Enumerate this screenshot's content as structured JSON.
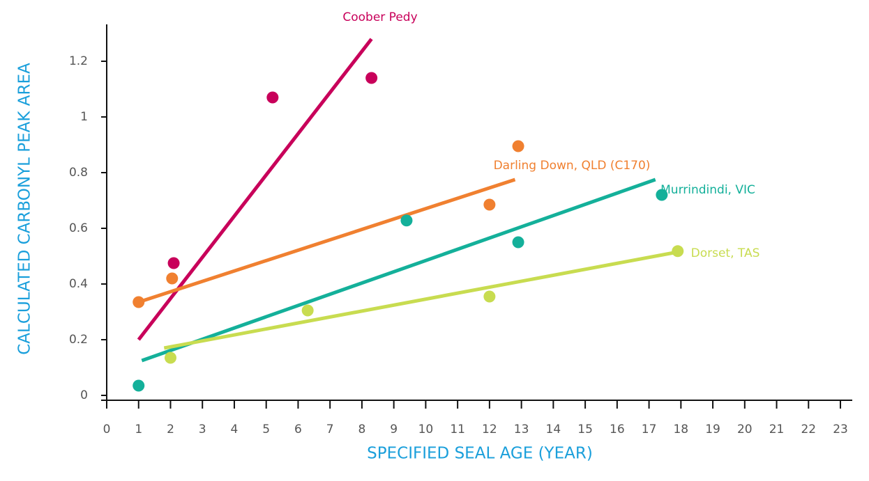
{
  "chart_data": {
    "type": "scatter",
    "xlabel": "SPECIFIED SEAL AGE (YEAR)",
    "ylabel": "CALCULATED CARBONYL  PEAK AREA",
    "xlim": [
      0,
      23.4
    ],
    "ylim": [
      0,
      1.33
    ],
    "xticks": [
      0,
      1,
      2,
      3,
      4,
      5,
      6,
      7,
      8,
      9,
      10,
      11,
      12,
      13,
      14,
      15,
      16,
      17,
      18,
      19,
      20,
      21,
      22,
      23
    ],
    "yticks": [
      0,
      0.2,
      0.4,
      0.6,
      0.8,
      1,
      1.2
    ],
    "series": [
      {
        "name": "Coober Pedy",
        "color": "#c8005a",
        "x": [
          2.1,
          5.2,
          8.3
        ],
        "values": [
          0.475,
          1.07,
          1.14
        ],
        "trend": {
          "x": [
            1,
            8.3
          ],
          "values": [
            0.2,
            1.28
          ]
        }
      },
      {
        "name": "Darling Down, QLD (C170)",
        "color": "#f08030",
        "x": [
          1,
          2.05,
          12,
          12.9
        ],
        "values": [
          0.335,
          0.42,
          0.685,
          0.895
        ],
        "trend": {
          "x": [
            1,
            12.8
          ],
          "values": [
            0.335,
            0.775
          ]
        }
      },
      {
        "name": "Murrindindi, VIC",
        "color": "#14b09a",
        "x": [
          1,
          9.4,
          12.9,
          17.4
        ],
        "values": [
          0.035,
          0.628,
          0.55,
          0.72
        ],
        "trend": {
          "x": [
            1.1,
            17.2
          ],
          "values": [
            0.125,
            0.775
          ]
        }
      },
      {
        "name": "Dorset, TAS",
        "color": "#c8dc50",
        "x": [
          2,
          6.3,
          12,
          17.9
        ],
        "values": [
          0.135,
          0.305,
          0.355,
          0.518
        ],
        "trend": {
          "x": [
            1.8,
            17.9
          ],
          "values": [
            0.17,
            0.515
          ]
        }
      }
    ]
  }
}
